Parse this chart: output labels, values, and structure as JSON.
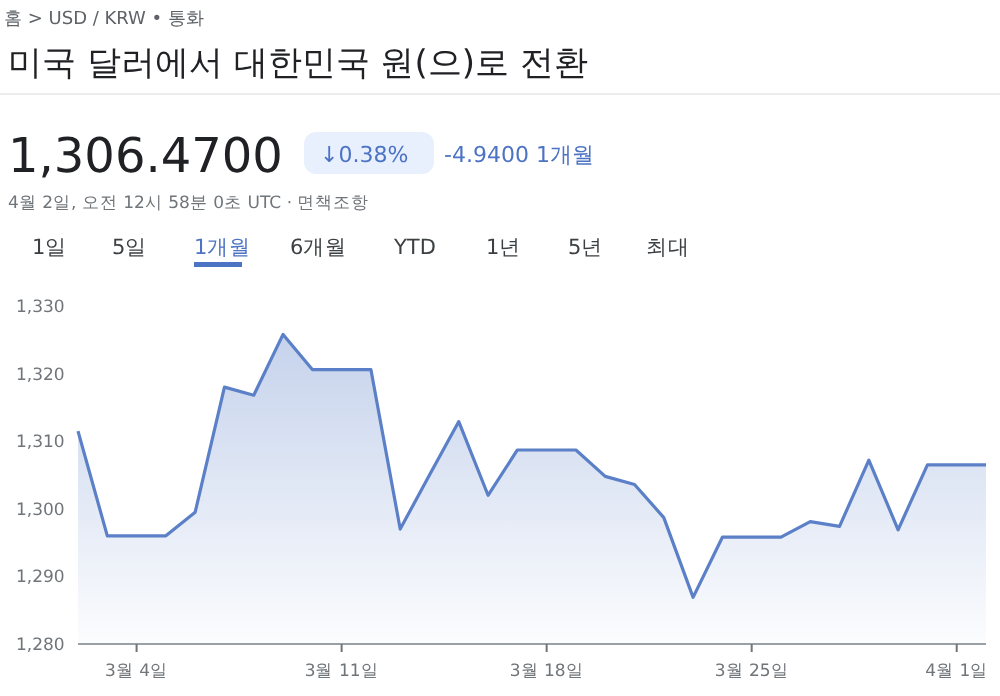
{
  "chart_data": {
    "type": "area",
    "title": "미국 달러에서 대한민국 원(으)로 전환",
    "annotations": [
      "홈 > USD / KRW • 통화",
      "1,306.4700",
      "↓0.38%",
      "-4.9400 1개월",
      "4월 2일, 오전 12시 58분 0초 UTC · 면책조항",
      "1일",
      "5일",
      "1개월",
      "6개월",
      "YTD",
      "1년",
      "5년",
      "최대"
    ],
    "x": [
      "--03-02",
      "--03-03",
      "--03-04",
      "--03-05",
      "--03-06",
      "--03-07",
      "--03-08",
      "--03-09",
      "--03-10",
      "--03-11",
      "--03-12",
      "--03-13",
      "--03-14",
      "--03-15",
      "--03-16",
      "--03-17",
      "--03-18",
      "--03-19",
      "--03-20",
      "--03-21",
      "--03-22",
      "--03-23",
      "--03-24",
      "--03-25",
      "--03-26",
      "--03-27",
      "--03-28",
      "--03-29",
      "--03-30",
      "--03-31",
      "--04-01",
      "--04-02"
    ],
    "values": [
      1311.5,
      1296,
      1296,
      1296,
      1299.5,
      1318,
      1316.8,
      1325.8,
      1320.6,
      1320.6,
      1320.6,
      1297,
      1305,
      1312.9,
      1302,
      1308.7,
      1308.7,
      1308.7,
      1304.8,
      1303.6,
      1298.7,
      1286.9,
      1295.8,
      1295.8,
      1295.8,
      1298.1,
      1297.4,
      1307.2,
      1296.9,
      1306.5,
      1306.5,
      1306.5
    ],
    "color": "#5b80c8",
    "xlim": [
      "--03-02",
      "--04-02"
    ],
    "xticks": [
      {
        "value": "--03-04",
        "label": "3월 4일"
      },
      {
        "value": "--03-11",
        "label": "3월 11일"
      },
      {
        "value": "--03-18",
        "label": "3월 18일"
      },
      {
        "value": "--03-25",
        "label": "3월 25일"
      },
      {
        "value": "--04-01",
        "label": "4월 1일"
      }
    ],
    "ylim": [
      1280,
      1330
    ],
    "yticks": [
      {
        "value": 1280,
        "label": "1,280"
      },
      {
        "value": 1290,
        "label": "1,290"
      },
      {
        "value": 1300,
        "label": "1,300"
      },
      {
        "value": 1310,
        "label": "1,310"
      },
      {
        "value": 1320,
        "label": "1,320"
      },
      {
        "value": 1330,
        "label": "1,330"
      }
    ]
  }
}
